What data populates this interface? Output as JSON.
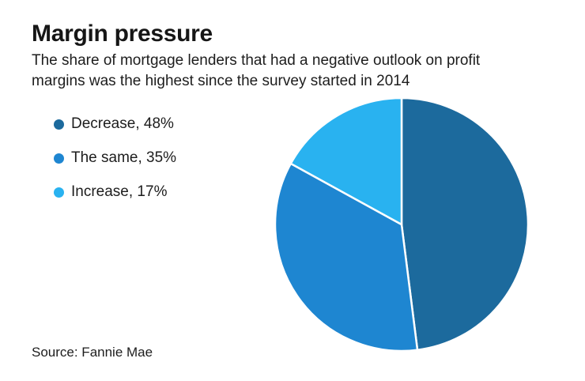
{
  "page": {
    "title": "Margin pressure",
    "subtitle": "The share of mortgage lenders that had a negative outlook on profit margins was the highest since the survey started in 2014",
    "source": "Source: Fannie Mae"
  },
  "legend": {
    "position": "left",
    "items": [
      {
        "label": "Decrease, 48%",
        "color": "#1c6a9d"
      },
      {
        "label": "The same, 35%",
        "color": "#1e86d1"
      },
      {
        "label": "Increase, 17%",
        "color": "#29b2f0"
      }
    ]
  },
  "chart_data": {
    "type": "pie",
    "title": "Margin pressure",
    "subtitle": "The share of mortgage lenders that had a negative outlook on profit margins was the highest since the survey started in 2014",
    "source": "Source: Fannie Mae",
    "start_angle_deg": 0,
    "direction": "clockwise",
    "slice_border_color": "#ffffff",
    "slices": [
      {
        "label": "Decrease",
        "value": 48,
        "color": "#1c6a9d"
      },
      {
        "label": "The same",
        "value": 35,
        "color": "#1e86d1"
      },
      {
        "label": "Increase",
        "value": 17,
        "color": "#29b2f0"
      }
    ]
  }
}
